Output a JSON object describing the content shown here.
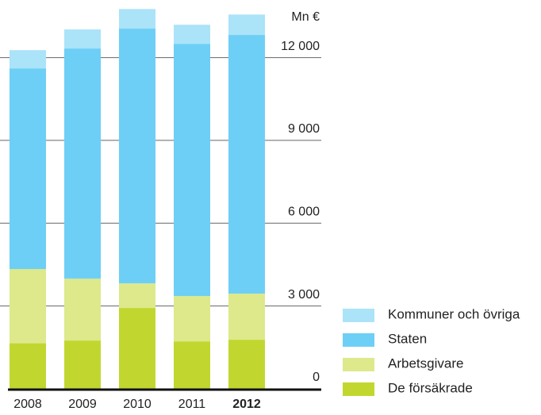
{
  "chart_data": {
    "type": "stacked-bar",
    "unit_label": "Mn €",
    "categories": [
      "2008",
      "2009",
      "2010",
      "2011",
      "2012"
    ],
    "series": [
      {
        "name": "De försäkrade",
        "color": "#c1d72f",
        "values": [
          1650,
          1750,
          2930,
          1720,
          1780
        ]
      },
      {
        "name": "Arbetsgivare",
        "color": "#dde98a",
        "values": [
          2690,
          2240,
          890,
          1640,
          1670
        ]
      },
      {
        "name": "Staten",
        "color": "#6dcff6",
        "values": [
          7270,
          8340,
          9230,
          9140,
          9370
        ]
      },
      {
        "name": "Kommuner och övriga",
        "color": "#abe3f9",
        "values": [
          660,
          690,
          710,
          690,
          740
        ]
      }
    ],
    "ylim": [
      0,
      14000
    ],
    "yticks": [
      0,
      {
        "value": 3000,
        "label": "3 000"
      },
      {
        "value": 6000,
        "label": "6 000"
      },
      {
        "value": 9000,
        "label": "9 000"
      },
      {
        "value": 12000,
        "label": "12 000"
      }
    ],
    "grid": true
  }
}
